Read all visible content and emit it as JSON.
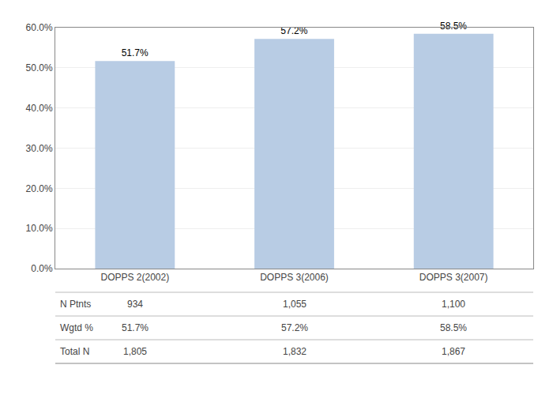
{
  "chart_data": {
    "type": "bar",
    "categories": [
      "DOPPS 2(2002)",
      "DOPPS 3(2006)",
      "DOPPS 3(2007)"
    ],
    "values": [
      51.7,
      57.2,
      58.5
    ],
    "value_labels": [
      "51.7%",
      "57.2%",
      "58.5%"
    ],
    "data_labels": true,
    "color": "#b8cce4",
    "ylim": [
      0,
      60
    ],
    "yticks": [
      {
        "value": 0,
        "label": "0.0%"
      },
      {
        "value": 10,
        "label": "10.0%"
      },
      {
        "value": 20,
        "label": "20.0%"
      },
      {
        "value": 30,
        "label": "30.0%"
      },
      {
        "value": 40,
        "label": "40.0%"
      },
      {
        "value": 50,
        "label": "50.0%"
      },
      {
        "value": 60,
        "label": "60.0%"
      }
    ],
    "grid": true,
    "table": {
      "row_labels": [
        "N Ptnts",
        "Wgtd %",
        "Total N"
      ],
      "rows": [
        [
          "934",
          "1,055",
          "1,100"
        ],
        [
          "51.7%",
          "57.2%",
          "58.5%"
        ],
        [
          "1,805",
          "1,832",
          "1,867"
        ]
      ]
    }
  }
}
